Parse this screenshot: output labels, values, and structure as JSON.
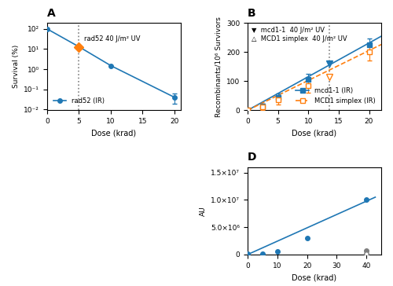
{
  "chart_data": [
    {
      "type": "line",
      "title": "A",
      "xlabel": "Dose (krad)",
      "ylabel": "Survival (%)",
      "log": "y",
      "xlim": [
        0,
        21
      ],
      "ylim": [
        0.009,
        200
      ],
      "xticks": [
        0,
        5,
        10,
        15,
        20
      ],
      "yticks": [
        {
          "value": 0.01,
          "label": "10⁻²"
        },
        {
          "value": 0.1,
          "label": "10⁻¹"
        },
        {
          "value": 1,
          "label": "10⁰"
        },
        {
          "value": 10,
          "label": "10¹"
        },
        {
          "value": 100,
          "label": "10²"
        }
      ],
      "legend": "lower left",
      "vline": 5.0,
      "series": [
        {
          "name": "rad52 (IR)",
          "type": "line",
          "x": [
            0,
            5,
            10,
            20
          ],
          "values": [
            100,
            13,
            1.5,
            0.04
          ],
          "errors": [
            null,
            null,
            null,
            0.02
          ],
          "marker": "circle",
          "line_style": "solid",
          "color": "#1f77b4"
        },
        {
          "type": "scatter",
          "x": [
            5.0
          ],
          "values": [
            13.0
          ],
          "marker": "diamond",
          "color": "#ff7f0e",
          "annotation": "rad52 40 J/m² UV"
        }
      ]
    },
    {
      "type": "scatter",
      "title": "B",
      "xlabel": "Dose (krad)",
      "ylabel": "Recombinants/10⁶ Survivors",
      "xlim": [
        0,
        22
      ],
      "ylim": [
        0,
        300
      ],
      "xticks": [
        0,
        5,
        10,
        15,
        20
      ],
      "yticks": [
        0,
        100,
        200,
        300
      ],
      "legend": "lower right",
      "vline": 13.5,
      "annotations": [
        "▼  mcd1-1  40 J/m² UV",
        "△  MCD1 simplex  40 J/m² UV"
      ],
      "series": [
        {
          "name": "mcd1-1 (IR)",
          "x": [
            0,
            2.5,
            5,
            10,
            20
          ],
          "values": [
            0,
            15,
            45,
            105,
            225
          ],
          "errors": [
            0,
            8,
            12,
            20,
            22
          ],
          "marker": "square",
          "line_style": "solid",
          "color": "#1f77b4",
          "fit": {
            "x": [
              0,
              22
            ],
            "values": [
              0,
              254.1
            ]
          }
        },
        {
          "name": "MCD1 simplex (IR)",
          "x": [
            0,
            2.5,
            5,
            10,
            20
          ],
          "values": [
            0,
            12,
            35,
            85,
            200
          ],
          "errors": [
            0,
            10,
            15,
            25,
            28
          ],
          "marker": "open_square",
          "line_style": "dashed",
          "color": "#ff7f0e",
          "fit": {
            "x": [
              0,
              22
            ],
            "values": [
              0,
              225.72
            ]
          }
        },
        {
          "x": [
            13.5
          ],
          "values": [
            160
          ],
          "marker": "triangle_down",
          "color": "#1f77b4"
        },
        {
          "x": [
            13.5
          ],
          "values": [
            115
          ],
          "marker": "open_triangle_down",
          "color": "#ff7f0e"
        }
      ]
    },
    {
      "type": "scatter",
      "title": "D",
      "xlabel": "Dose (krad)",
      "ylabel": "AU",
      "xlim": [
        0,
        45
      ],
      "ylim": [
        0,
        16000000
      ],
      "xticks": [
        0,
        10,
        20,
        30,
        40
      ],
      "yticks": [
        0,
        {
          "value": 5000000,
          "label": "5.0×10⁶"
        },
        {
          "value": 10000000,
          "label": "1.0×10⁷"
        },
        {
          "value": 15000000,
          "label": "1.5×10⁷"
        }
      ],
      "series": [
        {
          "x": [
            0,
            5,
            10,
            20,
            40
          ],
          "values": [
            200000,
            200000,
            500000,
            3000000,
            10000000
          ],
          "marker": "circle",
          "line_style": "solid",
          "color": "#1f77b4",
          "fit": {
            "x": [
              0,
              43
            ],
            "values": [
              0,
              10500000
            ]
          }
        },
        {
          "x": [
            40
          ],
          "values": [
            700000
          ],
          "marker": "circle",
          "color": "#7f7f7f"
        },
        {
          "x": [
            40
          ],
          "values": [
            200000
          ],
          "marker": "open_circle",
          "color": "#7f7f7f"
        }
      ]
    }
  ]
}
